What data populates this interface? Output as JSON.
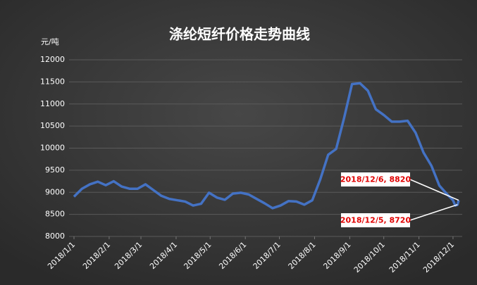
{
  "chart_data": {
    "type": "line",
    "title": "涤纶短纤价格走势曲线",
    "y_label": "元/吨",
    "x": [
      "2018/1/1",
      "2018/1/8",
      "2018/1/15",
      "2018/1/22",
      "2018/1/29",
      "2018/2/5",
      "2018/2/12",
      "2018/2/19",
      "2018/2/26",
      "2018/3/5",
      "2018/3/12",
      "2018/3/19",
      "2018/3/26",
      "2018/4/2",
      "2018/4/9",
      "2018/4/16",
      "2018/4/23",
      "2018/4/30",
      "2018/5/7",
      "2018/5/14",
      "2018/5/21",
      "2018/5/28",
      "2018/6/4",
      "2018/6/11",
      "2018/6/18",
      "2018/6/25",
      "2018/7/2",
      "2018/7/9",
      "2018/7/16",
      "2018/7/23",
      "2018/7/30",
      "2018/8/6",
      "2018/8/13",
      "2018/8/20",
      "2018/8/27",
      "2018/9/3",
      "2018/9/10",
      "2018/9/17",
      "2018/9/24",
      "2018/10/1",
      "2018/10/8",
      "2018/10/15",
      "2018/10/22",
      "2018/10/29",
      "2018/11/5",
      "2018/11/12",
      "2018/11/19",
      "2018/11/26",
      "2018/12/1",
      "2018/12/3",
      "2018/12/5",
      "2018/12/6"
    ],
    "series": [
      {
        "name": "涤纶短纤",
        "color": "#4472c4",
        "values": [
          8900,
          9080,
          9180,
          9240,
          9160,
          9250,
          9130,
          9080,
          9080,
          9180,
          9050,
          8920,
          8850,
          8820,
          8790,
          8700,
          8740,
          8990,
          8880,
          8830,
          8970,
          8990,
          8950,
          8850,
          8750,
          8640,
          8700,
          8800,
          8790,
          8720,
          8820,
          9290,
          9850,
          9980,
          10680,
          11450,
          11470,
          11300,
          10880,
          10750,
          10600,
          10600,
          10620,
          10350,
          9900,
          9600,
          9150,
          8950,
          8820,
          8700,
          8720,
          8820
        ]
      }
    ],
    "xlim": [
      "2018/1/1",
      "2018/12/6"
    ],
    "xticks": [
      "2018/1/1",
      "2018/2/1",
      "2018/3/1",
      "2018/4/1",
      "2018/5/1",
      "2018/6/1",
      "2018/7/1",
      "2018/8/1",
      "2018/9/1",
      "2018/10/1",
      "2018/11/1",
      "2018/12/1"
    ],
    "ylim": [
      8000,
      12000
    ],
    "yticks": [
      8000,
      8500,
      9000,
      9500,
      10000,
      10500,
      11000,
      11500,
      12000
    ],
    "grid": true,
    "annotations": [
      {
        "text": "2018/12/6, 8820",
        "x": "2018/12/6",
        "y": 8820
      },
      {
        "text": "2018/12/5, 8720",
        "x": "2018/12/5",
        "y": 8720
      }
    ]
  }
}
